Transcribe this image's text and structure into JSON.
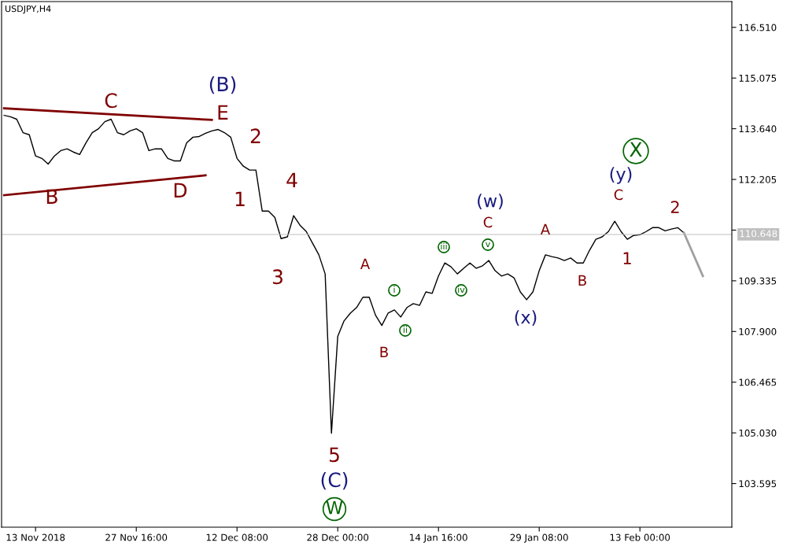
{
  "chart_data": {
    "type": "line",
    "title": "USDJPY,H4",
    "categories": [
      null,
      null,
      null,
      null,
      null,
      "13 Nov 2018",
      null,
      null,
      null,
      null,
      null,
      null,
      null,
      null,
      null,
      null,
      null,
      null,
      null,
      null,
      null,
      "27 Nov 16:00",
      null,
      null,
      null,
      null,
      null,
      null,
      null,
      null,
      null,
      null,
      null,
      null,
      null,
      null,
      null,
      "12 Dec 08:00",
      null,
      null,
      null,
      null,
      null,
      null,
      null,
      null,
      null,
      null,
      null,
      null,
      null,
      null,
      null,
      "28 Dec 00:00",
      null,
      null,
      null,
      null,
      null,
      null,
      null,
      null,
      null,
      null,
      null,
      null,
      null,
      null,
      null,
      "14 Jan 16:00",
      null,
      null,
      null,
      null,
      null,
      null,
      null,
      null,
      null,
      null,
      null,
      null,
      null,
      null,
      null,
      "29 Jan 08:00",
      null,
      null,
      null,
      null,
      null,
      null,
      null,
      null,
      null,
      null,
      null,
      null,
      null,
      null,
      null,
      "13 Feb 00:00",
      null,
      null,
      null,
      null,
      null,
      null,
      null,
      null,
      null,
      null,
      null,
      null,
      null,
      null
    ],
    "series": [
      {
        "color": "#000000",
        "values": [
          114.02,
          113.98,
          113.91,
          113.53,
          113.47,
          112.87,
          112.8,
          112.64,
          112.87,
          113.02,
          113.07,
          112.98,
          112.91,
          113.24,
          113.53,
          113.64,
          113.84,
          113.91,
          113.53,
          113.47,
          113.58,
          113.64,
          113.53,
          113.02,
          113.07,
          113.07,
          112.8,
          112.73,
          112.73,
          113.24,
          113.4,
          113.42,
          113.51,
          113.58,
          113.62,
          113.53,
          113.4,
          112.8,
          112.58,
          112.47,
          112.47,
          111.31,
          111.31,
          111.13,
          110.53,
          110.58,
          111.18,
          110.91,
          110.73,
          110.4,
          110.07,
          109.53,
          105.02,
          107.76,
          108.2,
          108.42,
          108.58,
          108.87,
          108.87,
          108.36,
          108.07,
          108.42,
          108.51,
          108.31,
          108.58,
          108.69,
          108.64,
          109.02,
          108.98,
          109.47,
          109.84,
          109.73,
          109.53,
          109.69,
          109.84,
          109.69,
          109.76,
          109.91,
          109.62,
          109.47,
          109.53,
          109.42,
          109.02,
          108.8,
          109.02,
          109.62,
          110.07,
          110.02,
          109.98,
          109.91,
          109.98,
          109.84,
          109.84,
          110.2,
          110.51,
          110.58,
          110.73,
          111.02,
          110.73,
          110.51,
          110.62,
          110.64,
          110.73,
          110.84,
          110.84,
          110.75,
          110.8,
          110.84,
          110.69,
          null,
          null,
          null,
          null,
          null,
          null,
          null
        ]
      },
      {
        "color": "#a0a0a0",
        "values": [
          null,
          null,
          null,
          null,
          null,
          null,
          null,
          null,
          null,
          null,
          null,
          null,
          null,
          null,
          null,
          null,
          null,
          null,
          null,
          null,
          null,
          null,
          null,
          null,
          null,
          null,
          null,
          null,
          null,
          null,
          null,
          null,
          null,
          null,
          null,
          null,
          null,
          null,
          null,
          null,
          null,
          null,
          null,
          null,
          null,
          null,
          null,
          null,
          null,
          null,
          null,
          null,
          null,
          null,
          null,
          null,
          null,
          null,
          null,
          null,
          null,
          null,
          null,
          null,
          null,
          null,
          null,
          null,
          null,
          null,
          null,
          null,
          null,
          null,
          null,
          null,
          null,
          null,
          null,
          null,
          null,
          null,
          null,
          null,
          null,
          null,
          null,
          null,
          null,
          null,
          null,
          null,
          null,
          null,
          null,
          null,
          null,
          null,
          null,
          null,
          null,
          null,
          null,
          null,
          null,
          null,
          null,
          null,
          110.69,
          null,
          null,
          109.47,
          null,
          null,
          null,
          null
        ]
      },
      {
        "color": "#800000",
        "values": [
          114.22,
          null,
          null,
          null,
          null,
          null,
          null,
          null,
          null,
          null,
          null,
          null,
          null,
          null,
          null,
          null,
          null,
          null,
          null,
          null,
          null,
          null,
          null,
          null,
          null,
          null,
          null,
          null,
          null,
          null,
          null,
          null,
          null,
          113.89,
          null,
          null,
          null,
          null,
          null,
          null,
          null,
          null,
          null,
          null,
          null,
          null,
          null,
          null,
          null,
          null,
          null,
          null,
          null,
          null,
          null,
          null,
          null,
          null,
          null,
          null,
          null,
          null,
          null,
          null,
          null,
          null,
          null,
          null,
          null,
          null,
          null,
          null,
          null,
          null,
          null,
          null,
          null,
          null,
          null,
          null,
          null,
          null,
          null,
          null,
          null,
          null,
          null,
          null,
          null,
          null,
          null,
          null,
          null,
          null,
          null,
          null,
          null,
          null,
          null,
          null,
          null,
          null,
          null,
          null,
          null,
          null,
          null,
          null,
          null,
          null,
          null,
          null,
          null,
          null,
          null,
          null
        ]
      },
      {
        "color": "#800000",
        "values": [
          111.76,
          null,
          null,
          null,
          null,
          null,
          null,
          null,
          null,
          null,
          null,
          null,
          null,
          null,
          null,
          null,
          null,
          null,
          null,
          null,
          null,
          null,
          null,
          null,
          null,
          null,
          null,
          null,
          null,
          null,
          null,
          null,
          112.32,
          null,
          null,
          null,
          null,
          null,
          null,
          null,
          null,
          null,
          null,
          null,
          null,
          null,
          null,
          null,
          null,
          null,
          null,
          null,
          null,
          null,
          null,
          null,
          null,
          null,
          null,
          null,
          null,
          null,
          null,
          null,
          null,
          null,
          null,
          null,
          null,
          null,
          null,
          null,
          null,
          null,
          null,
          null,
          null,
          null,
          null,
          null,
          null,
          null,
          null,
          null,
          null,
          null,
          null,
          null,
          null,
          null,
          null,
          null,
          null,
          null,
          null,
          null,
          null,
          null,
          null,
          null,
          null,
          null,
          null,
          null,
          null,
          null,
          null,
          null,
          null,
          null,
          null,
          null,
          null,
          null,
          null,
          null
        ]
      }
    ],
    "ylim": [
      102.36,
      117.24
    ],
    "yticks": [
      103.595,
      {
        "value": 105.03,
        "label": "105.030"
      },
      106.465,
      {
        "value": 107.9,
        "label": "107.900"
      },
      109.335,
      {
        "value": 110.77,
        "label": null
      },
      112.205,
      {
        "value": 113.64,
        "label": "113.640"
      },
      115.075,
      {
        "value": 116.51,
        "label": "116.510"
      }
    ],
    "ref_lines": [
      {
        "axis": "y",
        "value": 110.648,
        "label": "110.648",
        "color": "#c0c0c0"
      }
    ],
    "annotations": [
      "C",
      "B",
      "D",
      "E",
      "(B)",
      "2",
      "1",
      "4",
      "3",
      "5",
      "(C)",
      "W",
      "A",
      "B",
      "i",
      "ii",
      "iii",
      "iv",
      "v",
      "C",
      "(w)",
      "(x)",
      "A",
      "B",
      "C",
      "(y)",
      "X",
      "1",
      "2"
    ],
    "grid": false,
    "legend": false,
    "marker": "none",
    "line_style": "solid"
  }
}
